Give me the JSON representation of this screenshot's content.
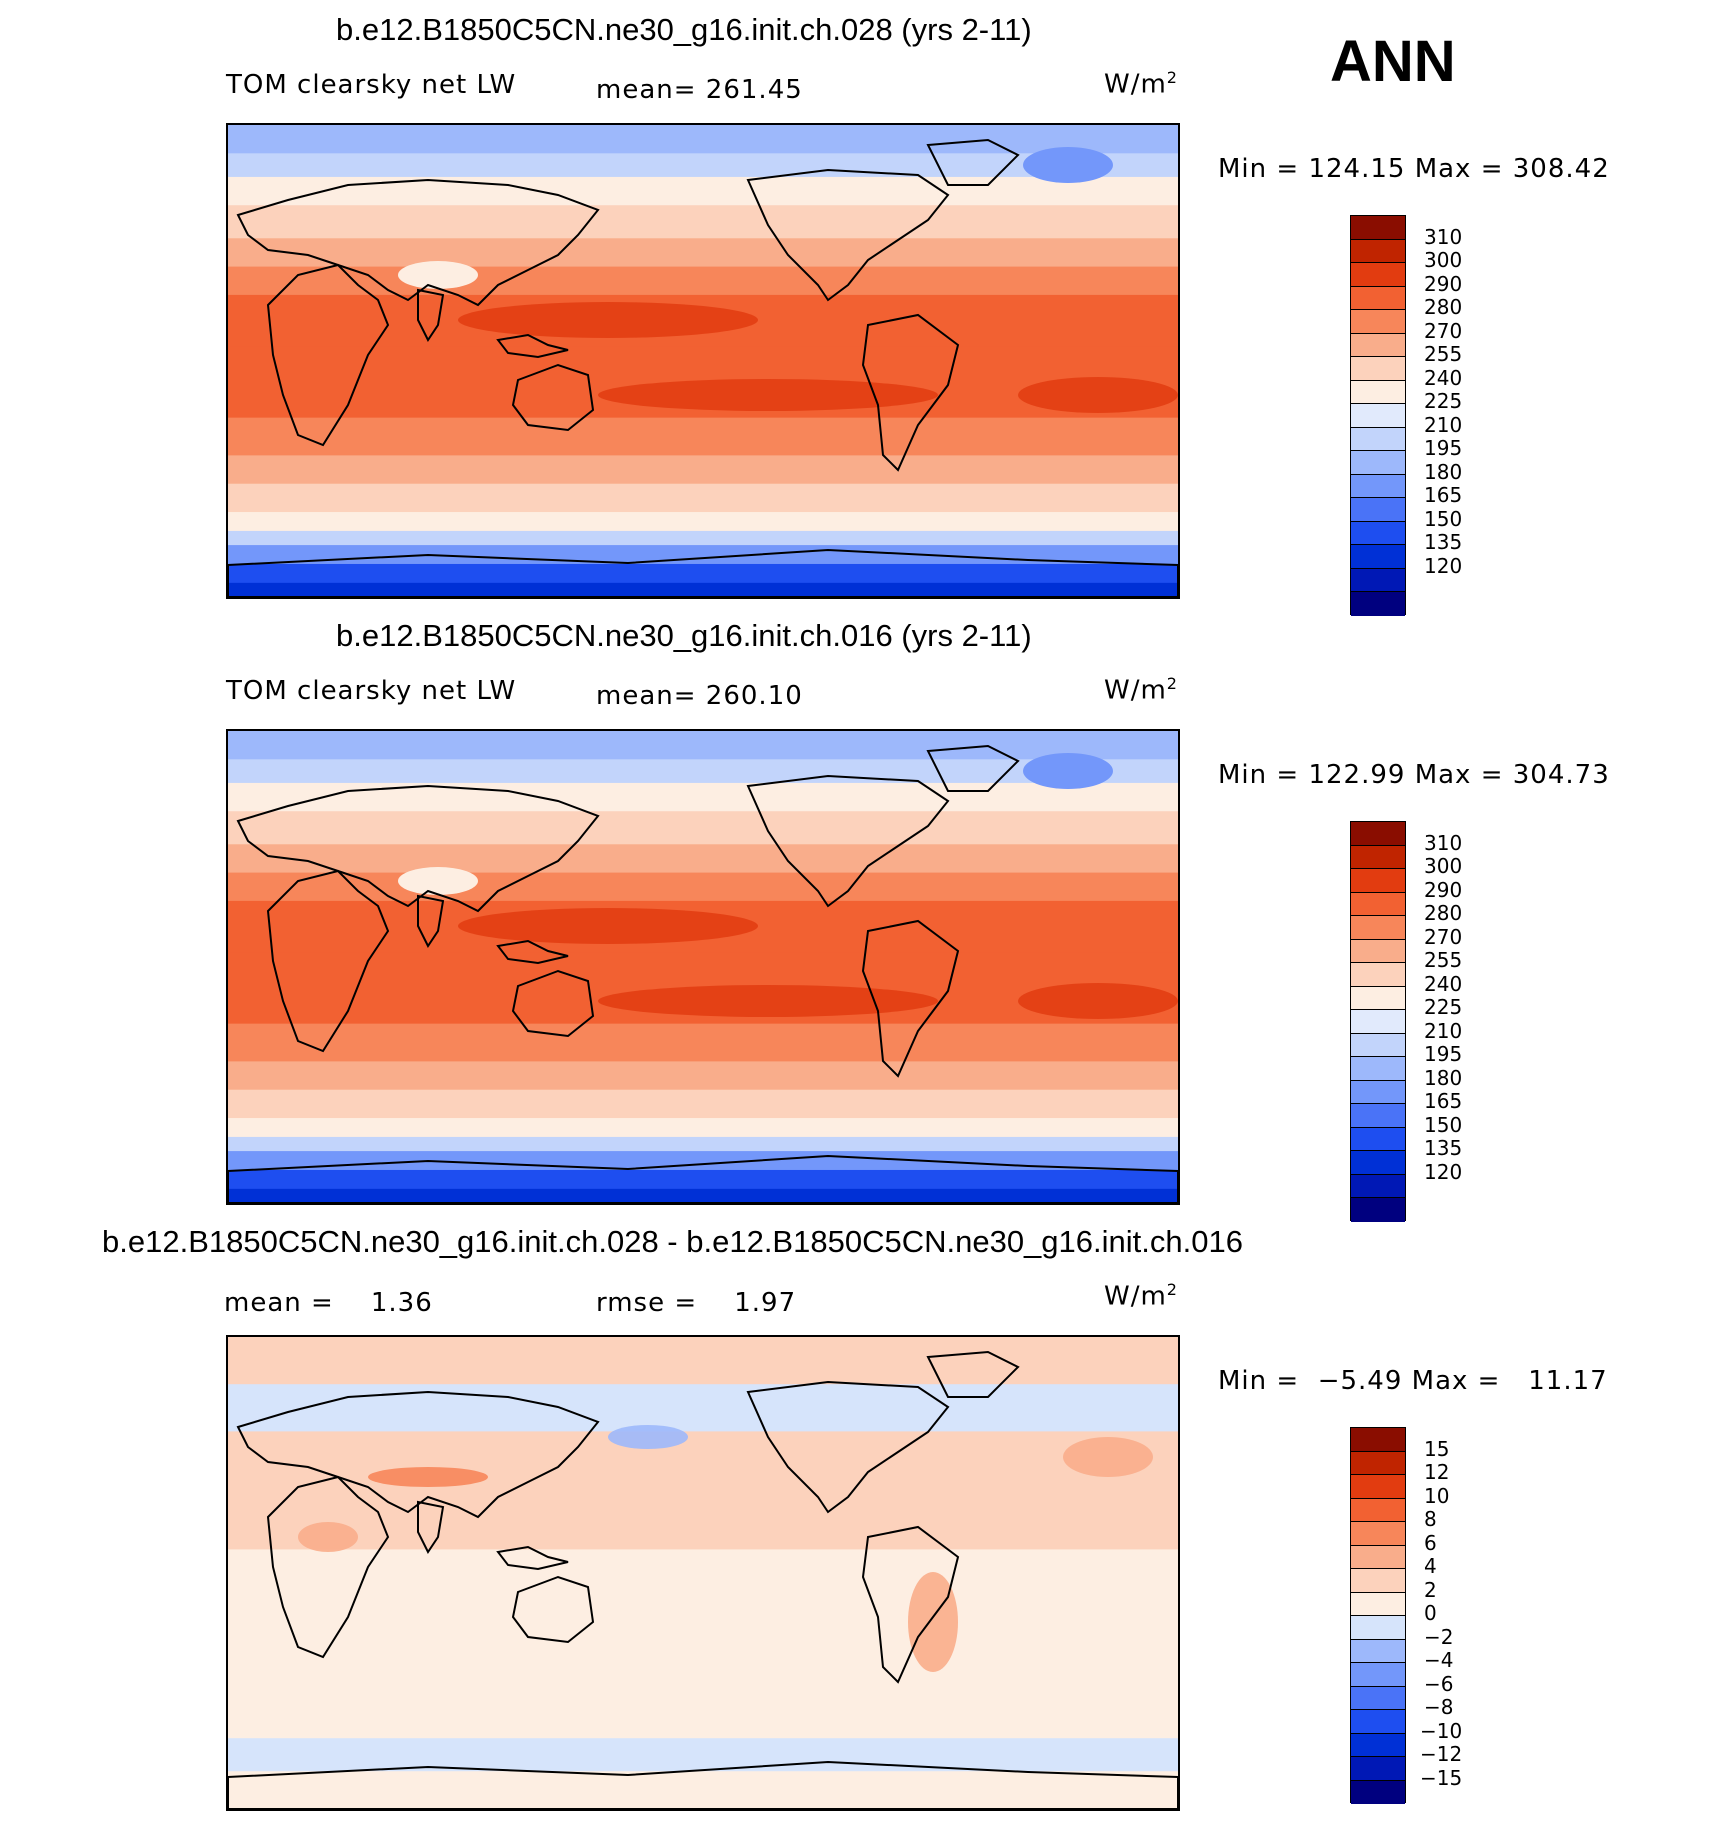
{
  "season": "ANN",
  "colors": {
    "abs_scale": [
      "#00007f",
      "#0018b5",
      "#0030d6",
      "#1e4ef0",
      "#4a73f7",
      "#7397fa",
      "#9db8fb",
      "#c2d4fb",
      "#e1eafc",
      "#fdeee2",
      "#fcd2bc",
      "#f9ad8b",
      "#f7865a",
      "#f26132",
      "#e23c10",
      "#c02400",
      "#8a0d00"
    ],
    "diff_scale": [
      "#00007f",
      "#0018b5",
      "#0030d6",
      "#1e4ef0",
      "#4a73f7",
      "#7397fa",
      "#9db8fb",
      "#d6e4fb",
      "#fdeee2",
      "#fcd2bc",
      "#f9ad8b",
      "#f7865a",
      "#f26132",
      "#e23c10",
      "#c02400",
      "#8a0d00"
    ],
    "coast": "#000000"
  },
  "panels": [
    {
      "title": "b.e12.B1850C5CN.ne30_g16.init.ch.028 (yrs 2-11)",
      "left_label": "TOM clearsky net LW",
      "mean_label": "mean=",
      "mean_value": "261.45",
      "units": "W/m",
      "units_sup": "2",
      "minmax": "Min = 124.15 Max = 308.42",
      "levels": [
        "310",
        "300",
        "290",
        "280",
        "270",
        "255",
        "240",
        "225",
        "210",
        "195",
        "180",
        "165",
        "150",
        "135",
        "120"
      ],
      "palette": "abs_scale"
    },
    {
      "title": "b.e12.B1850C5CN.ne30_g16.init.ch.016 (yrs 2-11)",
      "left_label": "TOM clearsky net LW",
      "mean_label": "mean=",
      "mean_value": "260.10",
      "units": "W/m",
      "units_sup": "2",
      "minmax": "Min = 122.99 Max = 304.73",
      "levels": [
        "310",
        "300",
        "290",
        "280",
        "270",
        "255",
        "240",
        "225",
        "210",
        "195",
        "180",
        "165",
        "150",
        "135",
        "120"
      ],
      "palette": "abs_scale"
    },
    {
      "title": "b.e12.B1850C5CN.ne30_g16.init.ch.028 - b.e12.B1850C5CN.ne30_g16.init.ch.016",
      "left_label": "mean =    1.36",
      "mean_label": "rmse =",
      "mean_value": "1.97",
      "units": "W/m",
      "units_sup": "2",
      "minmax": "Min =  −5.49 Max =   11.17",
      "levels": [
        "15",
        "12",
        "10",
        "8",
        "6",
        "4",
        "2",
        "0",
        "−2",
        "−4",
        "−6",
        "−8",
        "−10",
        "−12",
        "−15"
      ],
      "palette": "diff_scale"
    }
  ]
}
